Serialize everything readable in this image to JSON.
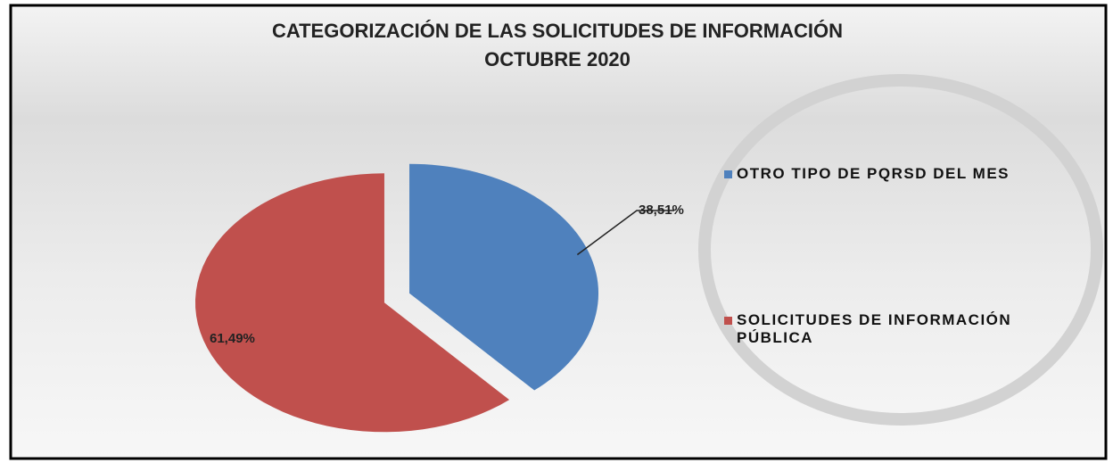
{
  "chart_data": {
    "type": "pie",
    "title": "CATEGORIZACIÓN DE LAS  SOLICITUDES DE INFORMACIÓN",
    "subtitle": "OCTUBRE 2020",
    "categories": [
      "OTRO TIPO DE PQRSD DEL MES",
      "SOLICITUDES DE INFORMACIÓN PÚBLICA"
    ],
    "values": [
      38.51,
      61.49
    ],
    "value_labels": [
      "38,51%",
      "61,49%"
    ],
    "colors": [
      "#4f81bd",
      "#c0504d"
    ],
    "legend": "right"
  }
}
